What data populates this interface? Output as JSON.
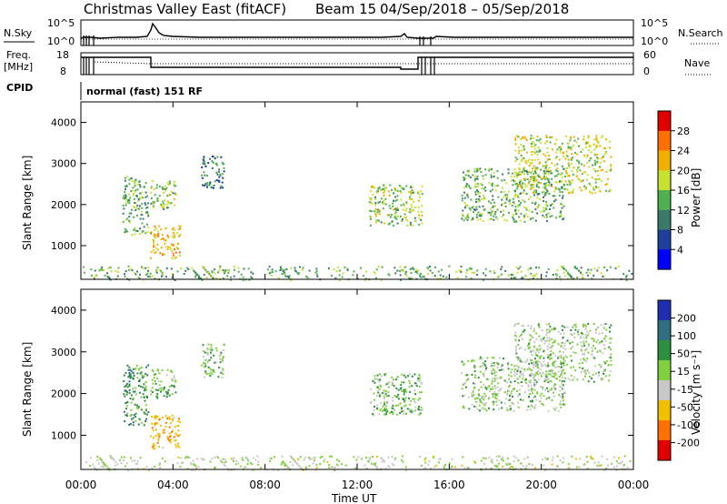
{
  "title": {
    "station": "Christmas Valley East (fitACF)",
    "beam": "Beam 15",
    "dates": "04/Sep/2018 – 05/Sep/2018"
  },
  "noise_panel": {
    "left_label": "N.Sky",
    "right_label": "N.Search",
    "left_ticks": [
      "10^5",
      "10^0"
    ],
    "right_ticks": [
      "10^5",
      "10^0"
    ]
  },
  "freq_panel": {
    "left_label_line1": "Freq.",
    "left_label_line2": "[MHz]",
    "right_label": "Nave",
    "left_ticks": [
      "18",
      "8"
    ],
    "right_ticks": [
      "60",
      "0"
    ]
  },
  "cpid": {
    "label": "CPID",
    "value": "normal (fast) 151 RF"
  },
  "power_panel": {
    "ylabel": "Slant Range [km]",
    "yticks": [
      "4000",
      "3000",
      "2000",
      "1000"
    ],
    "colorbar_label": "Power [dB]",
    "colorbar_ticks": [
      "28",
      "24",
      "20",
      "16",
      "12",
      "8",
      "4"
    ],
    "colorbar_colors": [
      "#e00000",
      "#ff7000",
      "#f0b000",
      "#c8e030",
      "#50b050",
      "#3a7a6a",
      "#1f3f9a",
      "#0000ff"
    ]
  },
  "velocity_panel": {
    "ylabel": "Slant Range [km]",
    "yticks": [
      "4000",
      "3000",
      "2000",
      "1000"
    ],
    "colorbar_label": "Velocity [m s⁻¹]",
    "colorbar_ticks": [
      "200",
      "100",
      "50",
      "15",
      "-15",
      "-50",
      "-100",
      "-200"
    ],
    "colorbar_colors": [
      "#1f2fb0",
      "#2f6f80",
      "#2f8f3f",
      "#80d040",
      "#c8c8c8",
      "#f0c000",
      "#ff7000",
      "#e00000"
    ]
  },
  "xaxis": {
    "label": "Time UT",
    "ticks": [
      "00:00",
      "04:00",
      "08:00",
      "12:00",
      "16:00",
      "20:00",
      "00:00"
    ]
  },
  "chart_data": {
    "type": "heatmap",
    "xlabel": "Time UT",
    "ylabel": "Slant Range [km]",
    "xlim": [
      0,
      24
    ],
    "ylim": [
      180,
      4500
    ],
    "patches": [
      {
        "name": "echo-0230-1400",
        "t": [
          1.8,
          2.9
        ],
        "r": [
          1250,
          2700
        ],
        "power": 12,
        "velocity": 30
      },
      {
        "name": "echo-0330-0900",
        "t": [
          3.0,
          4.3
        ],
        "r": [
          700,
          1500
        ],
        "power": 20,
        "velocity": -80
      },
      {
        "name": "echo-0330-2400",
        "t": [
          3.0,
          4.1
        ],
        "r": [
          1900,
          2600
        ],
        "power": 14,
        "velocity": 10
      },
      {
        "name": "echo-0540-2700",
        "t": [
          5.2,
          6.2
        ],
        "r": [
          2400,
          3200
        ],
        "power": 8,
        "velocity": 0
      },
      {
        "name": "echo-1300-2200",
        "t": [
          12.5,
          14.8
        ],
        "r": [
          1500,
          2500
        ],
        "power": 14,
        "velocity": 5
      },
      {
        "name": "echo-1700-2400",
        "t": [
          16.5,
          21.0
        ],
        "r": [
          1600,
          2900
        ],
        "power": 12,
        "velocity": -5
      },
      {
        "name": "echo-1900-2900",
        "t": [
          18.8,
          23.0
        ],
        "r": [
          2300,
          3700
        ],
        "power": 16,
        "velocity": -10
      },
      {
        "name": "ground-near-range",
        "t": [
          0.0,
          24.0
        ],
        "r": [
          180,
          520
        ],
        "power": 12,
        "velocity": -20
      }
    ],
    "freq_mhz": [
      {
        "t": [
          0.0,
          2.9
        ],
        "f": 15
      },
      {
        "t": [
          2.9,
          14.8
        ],
        "f": 11.5
      },
      {
        "t": [
          14.8,
          24.0
        ],
        "f": 15
      }
    ]
  }
}
